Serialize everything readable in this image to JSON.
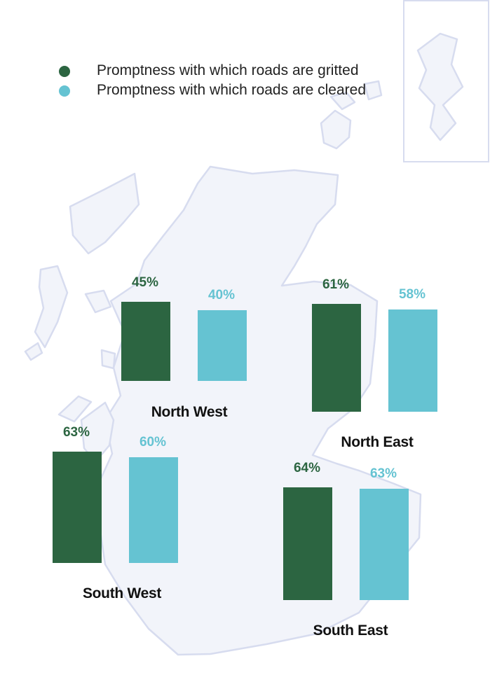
{
  "colors": {
    "gritted": "#2c6541",
    "cleared": "#65c3d2",
    "map_fill": "#f2f4fa",
    "map_stroke": "#d7dcef"
  },
  "legend": {
    "gritted_label": "Promptness with which roads are gritted",
    "cleared_label": "Promptness with which roads are cleared"
  },
  "chart_data": {
    "type": "bar",
    "title": "",
    "unit": "%",
    "categories": [
      "North West",
      "North East",
      "South West",
      "South East"
    ],
    "series": [
      {
        "name": "Promptness with which roads are gritted",
        "values": [
          45,
          61,
          63,
          64
        ],
        "labels": [
          "45%",
          "61%",
          "63%",
          "64%"
        ]
      },
      {
        "name": "Promptness with which roads are cleared",
        "values": [
          40,
          58,
          60,
          63
        ],
        "labels": [
          "40%",
          "58%",
          "60%",
          "63%"
        ]
      }
    ]
  }
}
